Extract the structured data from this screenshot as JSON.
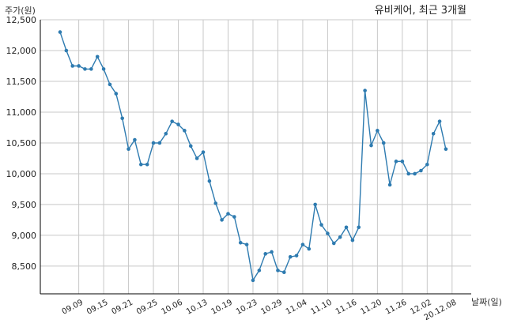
{
  "chart_data": {
    "type": "line",
    "title": "유비케어, 최근 3개월",
    "xlabel": "날짜(일)",
    "ylabel": "주가(원)",
    "ylim": [
      8050,
      12500
    ],
    "grid": true,
    "yticks": [
      8500,
      9000,
      9500,
      10000,
      10500,
      11000,
      11500,
      12000,
      12500
    ],
    "ytick_labels": [
      "8,500",
      "9,000",
      "9,500",
      "10,000",
      "10,500",
      "11,000",
      "11,500",
      "12,000",
      "12,500"
    ],
    "xtick_labels": [
      "09.09",
      "09.15",
      "09.21",
      "09.25",
      "10.06",
      "10.13",
      "10.19",
      "10.23",
      "10.29",
      "11.04",
      "11.10",
      "11.16",
      "11.20",
      "11.26",
      "12.02",
      "20.12.08"
    ],
    "xtick_index": [
      3,
      7,
      11,
      15,
      19,
      23,
      27,
      31,
      35,
      39,
      43,
      47,
      51,
      55,
      59,
      63
    ],
    "series": [
      {
        "values": [
          12300,
          12000,
          11750,
          11750,
          11700,
          11700,
          11900,
          11700,
          11450,
          11300,
          10900,
          10400,
          10550,
          10150,
          10150,
          10500,
          10500,
          10650,
          10850,
          10800,
          10700,
          10450,
          10250,
          10350,
          9880,
          9520,
          9250,
          9350,
          9300,
          8880,
          8850,
          8270,
          8430,
          8700,
          8730,
          8430,
          8400,
          8650,
          8670,
          8850,
          8780,
          9500,
          9170,
          9030,
          8870,
          8970,
          9130,
          8920,
          9130,
          11350,
          10460,
          10700,
          10500,
          9820,
          10200,
          10200,
          10000,
          10000,
          10050,
          10150,
          10650,
          10850,
          10400
        ]
      }
    ]
  }
}
